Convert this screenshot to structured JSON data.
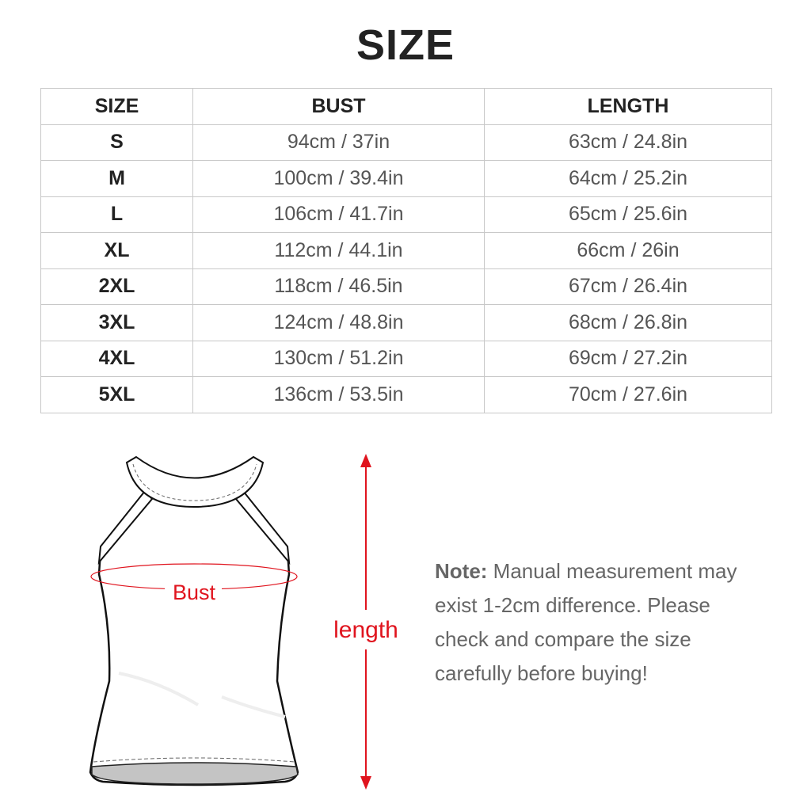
{
  "title": "SIZE",
  "table": {
    "headers": [
      "SIZE",
      "BUST",
      "LENGTH"
    ],
    "rows": [
      {
        "size": "S",
        "bust": "94cm / 37in",
        "length": "63cm / 24.8in"
      },
      {
        "size": "M",
        "bust": "100cm / 39.4in",
        "length": "64cm / 25.2in"
      },
      {
        "size": "L",
        "bust": "106cm / 41.7in",
        "length": "65cm / 25.6in"
      },
      {
        "size": "XL",
        "bust": "112cm / 44.1in",
        "length": "66cm / 26in"
      },
      {
        "size": "2XL",
        "bust": "118cm / 46.5in",
        "length": "67cm / 26.4in"
      },
      {
        "size": "3XL",
        "bust": "124cm / 48.8in",
        "length": "68cm / 26.8in"
      },
      {
        "size": "4XL",
        "bust": "130cm / 51.2in",
        "length": "69cm / 27.2in"
      },
      {
        "size": "5XL",
        "bust": "136cm / 53.5in",
        "length": "70cm / 27.6in"
      }
    ]
  },
  "diagram": {
    "bust_label": "Bust",
    "length_label": "length",
    "accent_color": "#e0141e"
  },
  "note": {
    "label": "Note:",
    "text": " Manual measurement may exist 1-2cm difference. Please check and compare the size carefully before buying!"
  }
}
